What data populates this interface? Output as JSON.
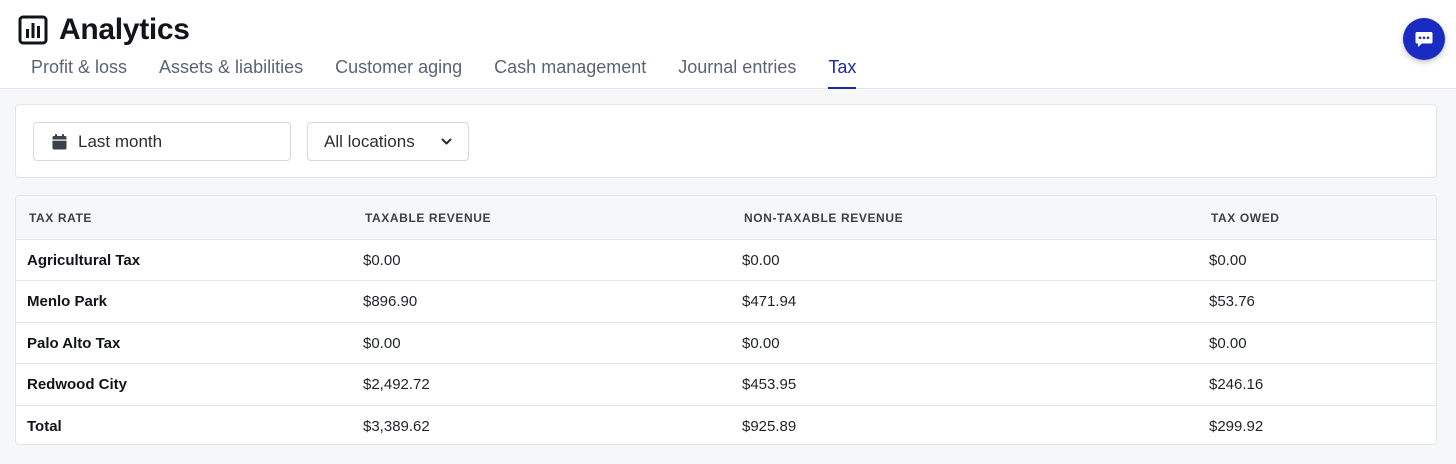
{
  "header": {
    "title": "Analytics",
    "icon": "bar-chart-icon",
    "tabs": [
      {
        "label": "Profit & loss",
        "active": false
      },
      {
        "label": "Assets & liabilities",
        "active": false
      },
      {
        "label": "Customer aging",
        "active": false
      },
      {
        "label": "Cash management",
        "active": false
      },
      {
        "label": "Journal entries",
        "active": false
      },
      {
        "label": "Tax",
        "active": true
      }
    ]
  },
  "filters": {
    "date_range": "Last month",
    "location": "All locations"
  },
  "table": {
    "columns": [
      "TAX RATE",
      "TAXABLE REVENUE",
      "NON-TAXABLE REVENUE",
      "TAX OWED"
    ],
    "rows": [
      [
        "Agricultural Tax",
        "$0.00",
        "$0.00",
        "$0.00"
      ],
      [
        "Menlo Park",
        "$896.90",
        "$471.94",
        "$53.76"
      ],
      [
        "Palo Alto Tax",
        "$0.00",
        "$0.00",
        "$0.00"
      ],
      [
        "Redwood City",
        "$2,492.72",
        "$453.95",
        "$246.16"
      ],
      [
        "Total",
        "$3,389.62",
        "$925.89",
        "$299.92"
      ]
    ]
  },
  "colors": {
    "accent": "#1c2aa8",
    "chat_button": "#1a2bc2",
    "border": "#e2e5ea"
  }
}
